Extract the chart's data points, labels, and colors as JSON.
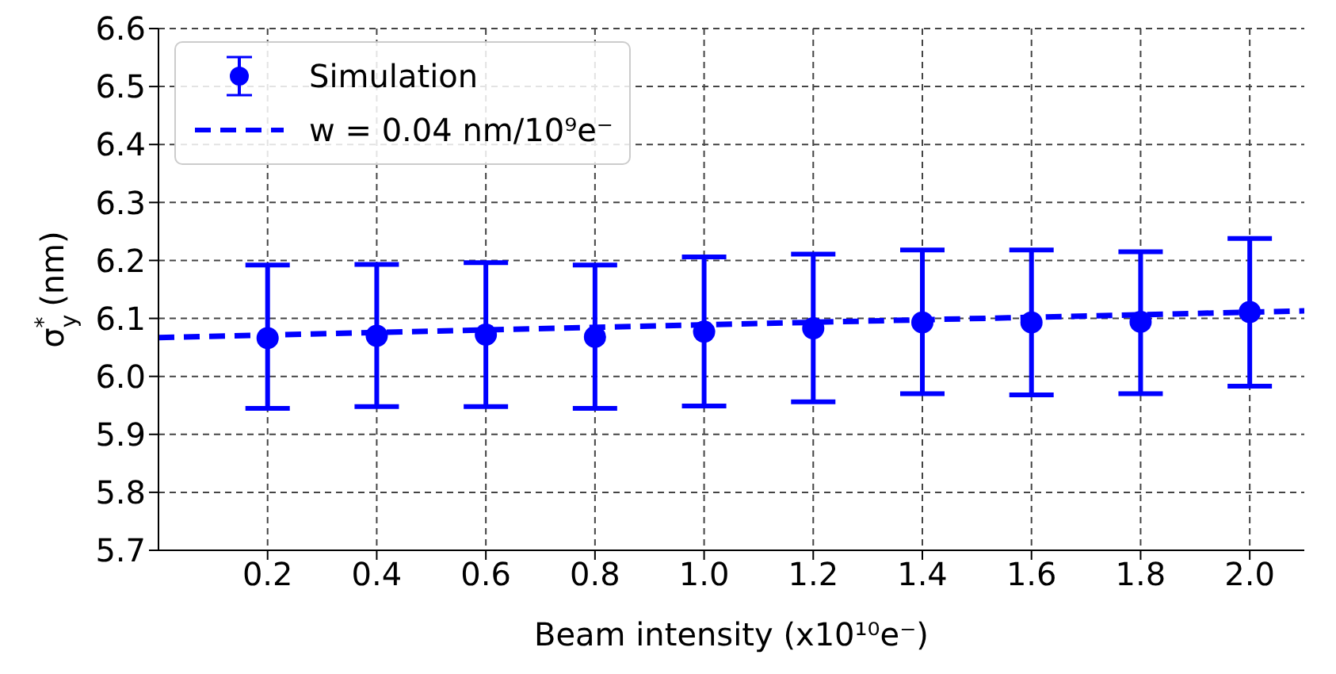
{
  "chart_data": {
    "type": "scatter",
    "xlabel": "Beam intensity (x10¹⁰e⁻)",
    "ylabel": "σ$_{y}$$^{*}$ (nm)",
    "xlim": [
      0,
      2.1
    ],
    "ylim": [
      5.7,
      6.6
    ],
    "xticks": [
      0.2,
      0.4,
      0.6,
      0.8,
      {
        "value": 1,
        "label": "1.0"
      },
      1.2,
      1.4,
      1.6,
      1.8,
      {
        "value": 2,
        "label": "2.0"
      }
    ],
    "yticks": [
      5.7,
      5.8,
      5.9,
      {
        "value": 6,
        "label": "6.0"
      },
      6.1,
      6.2,
      6.3,
      6.4,
      6.5,
      6.6
    ],
    "grid": true,
    "legend": "top left",
    "series": [
      {
        "name": "Simulation",
        "color": "#0000ff",
        "marker": "circle",
        "x": [
          0.2,
          0.4,
          0.6,
          0.8,
          1.0,
          1.2,
          1.4,
          1.6,
          1.8,
          2.0
        ],
        "values": [
          6.066,
          6.07,
          6.072,
          6.068,
          6.077,
          6.083,
          6.093,
          6.093,
          6.094,
          6.111
        ],
        "errors": [
          [
            5.945,
            6.192
          ],
          [
            5.948,
            6.193
          ],
          [
            5.948,
            6.196
          ],
          [
            5.945,
            6.192
          ],
          [
            5.949,
            6.206
          ],
          [
            5.956,
            6.211
          ],
          [
            5.97,
            6.218
          ],
          [
            5.968,
            6.218
          ],
          [
            5.97,
            6.215
          ],
          [
            5.983,
            6.238
          ]
        ]
      },
      {
        "type": "line",
        "name": "w = 0.04 nm/10⁹e⁻",
        "color": "#0000ff",
        "line_style": "dashed",
        "marker": "none",
        "x": [
          0,
          2.1
        ],
        "values": [
          6.067,
          6.113
        ]
      }
    ]
  }
}
